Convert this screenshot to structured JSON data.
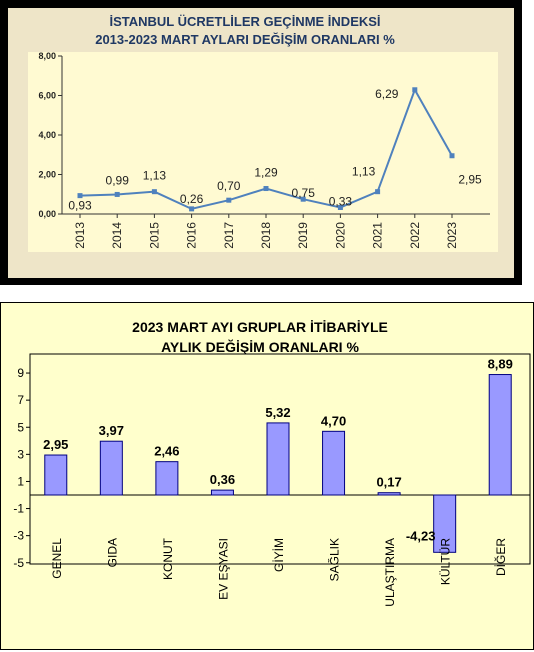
{
  "chart_data": [
    {
      "type": "line",
      "title": "İSTANBUL ÜCRETLİLER GEÇİNME İNDEKSİ",
      "subtitle": "2013-2023 MART AYLARI DEĞİŞİM ORANLARI %",
      "x": [
        "2013",
        "2014",
        "2015",
        "2016",
        "2017",
        "2018",
        "2019",
        "2020",
        "2021",
        "2022",
        "2023"
      ],
      "values": [
        0.93,
        0.99,
        1.13,
        0.26,
        0.7,
        1.29,
        0.75,
        0.33,
        1.13,
        6.29,
        2.95
      ],
      "data_labels": [
        "0,93",
        "0,99",
        "1,13",
        "0,26",
        "0,70",
        "1,29",
        "0,75",
        "0,33",
        "1,13",
        "6,29",
        "2,95"
      ],
      "yticks": [
        "0,00",
        "2,00",
        "4,00",
        "6,00",
        "8,00"
      ],
      "ylim": [
        0,
        8
      ],
      "colors": {
        "line": "#4F81BD",
        "frame": "#000000",
        "plot_bg": "#FFFAD2",
        "outer_bg": "#EEE5C8",
        "title": "#1F3864"
      }
    },
    {
      "type": "bar",
      "title": "2023 MART AYI GRUPLAR İTİBARİYLE",
      "subtitle": "AYLIK DEĞİŞİM ORANLARI %",
      "categories": [
        "GENEL",
        "GIDA",
        "KONUT",
        "EV EŞYASI",
        "GİYİM",
        "SAĞLIK",
        "ULAŞTIRMA",
        "KÜLTÜR",
        "DİĞER"
      ],
      "values": [
        2.95,
        3.97,
        2.46,
        0.36,
        5.32,
        4.7,
        0.17,
        -4.23,
        8.89
      ],
      "data_labels": [
        "2,95",
        "3,97",
        "2,46",
        "0,36",
        "5,32",
        "4,70",
        "0,17",
        "-4,23",
        "8,89"
      ],
      "yticks": [
        "9",
        "7",
        "5",
        "3",
        "1",
        "-1",
        "-3",
        "-5"
      ],
      "ylim": [
        -5,
        10
      ],
      "colors": {
        "bar": "#9999FF",
        "bar_edge": "#000080",
        "plot_bg": "#FFFFCC",
        "outer_bg": "#FFFFCC",
        "frame": "#000000"
      }
    }
  ]
}
